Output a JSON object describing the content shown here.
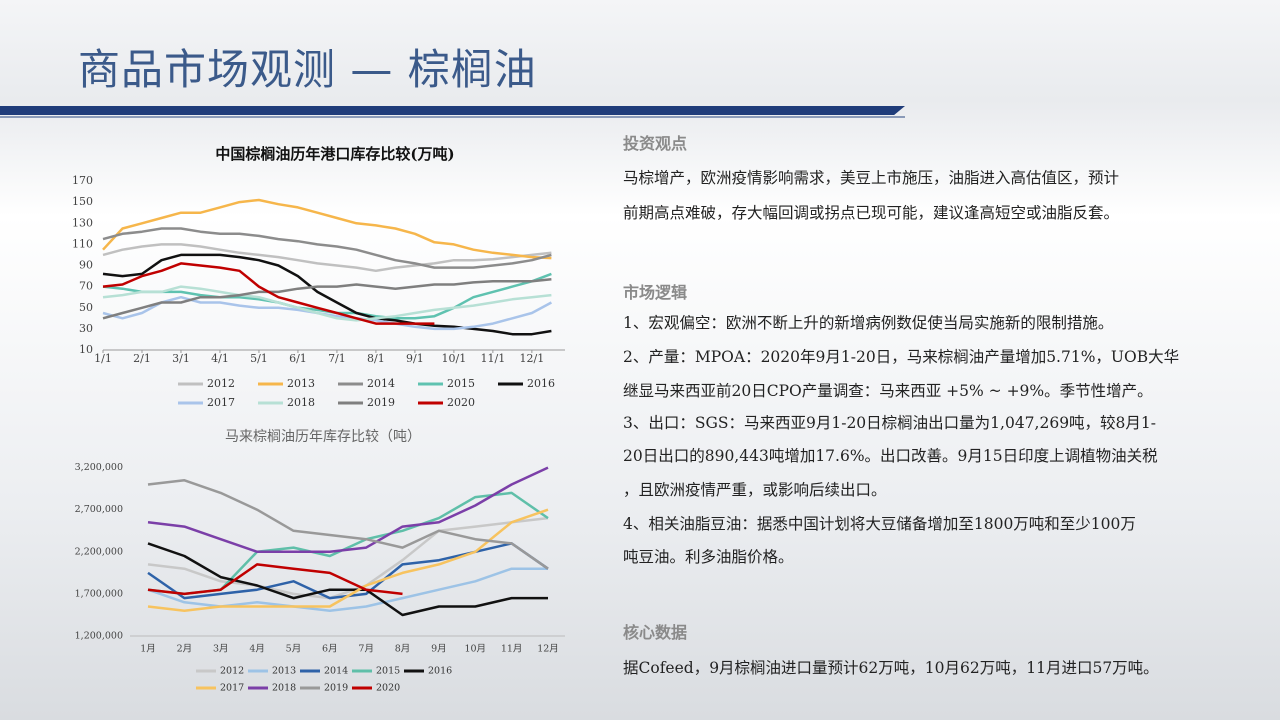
{
  "title": "商品市场观测 — 棕榈油",
  "sections": [
    {
      "heading": "投资观点",
      "lines": [
        "马棕增产，欧洲疫情影响需求，美豆上市施压，油脂进入高估值区，预计",
        "前期高点难破，存大幅回调或拐点已现可能，建议逢高短空或油脂反套。"
      ]
    },
    {
      "heading": "市场逻辑",
      "lines": [
        "1、宏观偏空：欧洲不断上升的新增病例数促使当局实施新的限制措施。",
        "2、产量：MPOA：2020年9月1-20日，马来棕榈油产量增加5.71%，UOB大华",
        "继显马来西亚前20日CPO产量调查：马来西亚 +5% ~ +9%。季节性增产。",
        "3、出口：SGS：马来西亚9月1-20日棕榈油出口量为1,047,269吨，较8月1-",
        "20日出口的890,443吨增加17.6%。出口改善。9月15日印度上调植物油关税",
        "，且欧洲疫情严重，或影响后续出口。",
        "4、相关油脂豆油：据悉中国计划将大豆储备增加至1800万吨和至少100万",
        "吨豆油。利多油脂价格。"
      ]
    },
    {
      "heading": "核心数据",
      "lines": [
        "据Cofeed，9月棕榈油进口量预计62万吨，10月62万吨，11月进口57万吨。"
      ]
    }
  ],
  "chart_data": [
    {
      "type": "line",
      "title": "中国棕榈油历年港口库存比较(万吨)",
      "x": [
        1,
        1.5,
        2,
        2.5,
        3,
        3.5,
        4,
        4.5,
        5,
        5.5,
        6,
        6.5,
        7,
        7.5,
        8,
        8.5,
        9,
        9.5,
        10,
        10.5,
        11,
        11.5,
        12,
        12.5
      ],
      "xlim": [
        1,
        12.85
      ],
      "xticks": [
        {
          "value": 1,
          "label": "1/1"
        },
        {
          "value": 2,
          "label": "2/1"
        },
        {
          "value": 3,
          "label": "3/1"
        },
        {
          "value": 4,
          "label": "4/1"
        },
        {
          "value": 5,
          "label": "5/1"
        },
        {
          "value": 6,
          "label": "6/1"
        },
        {
          "value": 7,
          "label": "7/1"
        },
        {
          "value": 8,
          "label": "8/1"
        },
        {
          "value": 9,
          "label": "9/1"
        },
        {
          "value": 10,
          "label": "10/1"
        },
        {
          "value": 11,
          "label": "11/1"
        },
        {
          "value": 12,
          "label": "12/1"
        }
      ],
      "ylim": [
        10,
        170
      ],
      "yticks": [
        10,
        30,
        50,
        70,
        90,
        110,
        130,
        150,
        170
      ],
      "series": [
        {
          "name": "2012",
          "color": "#c0c0c0",
          "values": [
            100,
            105,
            108,
            110,
            110,
            108,
            105,
            102,
            100,
            98,
            95,
            92,
            90,
            88,
            85,
            88,
            90,
            92,
            95,
            95,
            96,
            98,
            100,
            102
          ]
        },
        {
          "name": "2013",
          "color": "#f6b64b",
          "values": [
            105,
            125,
            130,
            135,
            140,
            140,
            145,
            150,
            152,
            148,
            145,
            140,
            135,
            130,
            128,
            125,
            120,
            112,
            110,
            105,
            102,
            100,
            98,
            97
          ]
        },
        {
          "name": "2014",
          "color": "#8c8c8c",
          "values": [
            115,
            120,
            122,
            125,
            125,
            122,
            120,
            120,
            118,
            115,
            113,
            110,
            108,
            105,
            100,
            95,
            92,
            88,
            88,
            88,
            90,
            92,
            95,
            100
          ]
        },
        {
          "name": "2015",
          "color": "#5fc2b0",
          "values": [
            70,
            68,
            65,
            65,
            65,
            62,
            60,
            60,
            58,
            55,
            50,
            48,
            45,
            45,
            42,
            40,
            40,
            42,
            50,
            60,
            65,
            70,
            75,
            82
          ]
        },
        {
          "name": "2016",
          "color": "#111111",
          "values": [
            82,
            80,
            82,
            95,
            100,
            100,
            100,
            98,
            95,
            90,
            80,
            65,
            55,
            45,
            40,
            38,
            35,
            33,
            32,
            30,
            28,
            25,
            25,
            28
          ]
        },
        {
          "name": "2017",
          "color": "#a9c4ea",
          "values": [
            45,
            40,
            45,
            55,
            60,
            55,
            55,
            52,
            50,
            50,
            48,
            45,
            42,
            40,
            38,
            35,
            32,
            30,
            30,
            32,
            35,
            40,
            45,
            55
          ]
        },
        {
          "name": "2018",
          "color": "#b7e0d5",
          "values": [
            60,
            62,
            65,
            65,
            70,
            68,
            65,
            62,
            60,
            55,
            50,
            45,
            40,
            38,
            40,
            42,
            45,
            48,
            50,
            52,
            55,
            58,
            60,
            62
          ]
        },
        {
          "name": "2019",
          "color": "#7f7f7f",
          "values": [
            40,
            45,
            50,
            55,
            55,
            60,
            60,
            62,
            65,
            65,
            68,
            70,
            70,
            72,
            70,
            68,
            70,
            72,
            72,
            74,
            75,
            75,
            75,
            77
          ]
        },
        {
          "name": "2020",
          "color": "#c00000",
          "values": [
            70,
            72,
            80,
            85,
            92,
            90,
            88,
            85,
            70,
            60,
            55,
            50,
            45,
            40,
            35,
            35,
            35,
            35,
            null,
            null,
            null,
            null,
            null,
            null
          ]
        }
      ]
    },
    {
      "type": "line",
      "title": "马来棕榈油历年库存比较（吨）",
      "categories": [
        "1月",
        "2月",
        "3月",
        "4月",
        "5月",
        "6月",
        "7月",
        "8月",
        "9月",
        "10月",
        "11月",
        "12月"
      ],
      "ylim": [
        1200000,
        3350000
      ],
      "yticks": [
        {
          "value": 1200000,
          "label": "1,200,000"
        },
        {
          "value": 1700000,
          "label": "1,700,000"
        },
        {
          "value": 2200000,
          "label": "2,200,000"
        },
        {
          "value": 2700000,
          "label": "2,700,000"
        },
        {
          "value": 3200000,
          "label": "3,200,000"
        }
      ],
      "series": [
        {
          "name": "2012",
          "color": "#c8c8c8",
          "values": [
            2050000,
            2000000,
            1850000,
            1800000,
            1700000,
            1650000,
            1800000,
            2100000,
            2450000,
            2500000,
            2550000,
            2600000
          ]
        },
        {
          "name": "2013",
          "color": "#9dc3e6",
          "values": [
            1750000,
            1600000,
            1550000,
            1600000,
            1550000,
            1500000,
            1550000,
            1650000,
            1750000,
            1850000,
            2000000,
            2000000
          ]
        },
        {
          "name": "2014",
          "color": "#2e62a8",
          "values": [
            1950000,
            1650000,
            1700000,
            1750000,
            1850000,
            1650000,
            1700000,
            2050000,
            2100000,
            2200000,
            2300000,
            2000000
          ]
        },
        {
          "name": "2015",
          "color": "#5fbfa9",
          "values": [
            1750000,
            1700000,
            1750000,
            2200000,
            2250000,
            2150000,
            2350000,
            2450000,
            2600000,
            2850000,
            2900000,
            2600000
          ]
        },
        {
          "name": "2016",
          "color": "#111111",
          "values": [
            2300000,
            2150000,
            1900000,
            1800000,
            1650000,
            1750000,
            1750000,
            1450000,
            1550000,
            1550000,
            1650000,
            1650000
          ]
        },
        {
          "name": "2017",
          "color": "#f7c35f",
          "values": [
            1550000,
            1500000,
            1550000,
            1550000,
            1550000,
            1550000,
            1800000,
            1950000,
            2050000,
            2200000,
            2550000,
            2700000
          ]
        },
        {
          "name": "2018",
          "color": "#7b3fa8",
          "values": [
            2550000,
            2500000,
            2350000,
            2200000,
            2200000,
            2200000,
            2250000,
            2500000,
            2550000,
            2750000,
            3000000,
            3200000
          ]
        },
        {
          "name": "2019",
          "color": "#999999",
          "values": [
            3000000,
            3050000,
            2900000,
            2700000,
            2450000,
            2400000,
            2350000,
            2250000,
            2450000,
            2350000,
            2300000,
            2000000
          ]
        },
        {
          "name": "2020",
          "color": "#c00000",
          "values": [
            1750000,
            1700000,
            1750000,
            2050000,
            2000000,
            1950000,
            1750000,
            1700000,
            null,
            null,
            null,
            null
          ]
        }
      ]
    }
  ]
}
